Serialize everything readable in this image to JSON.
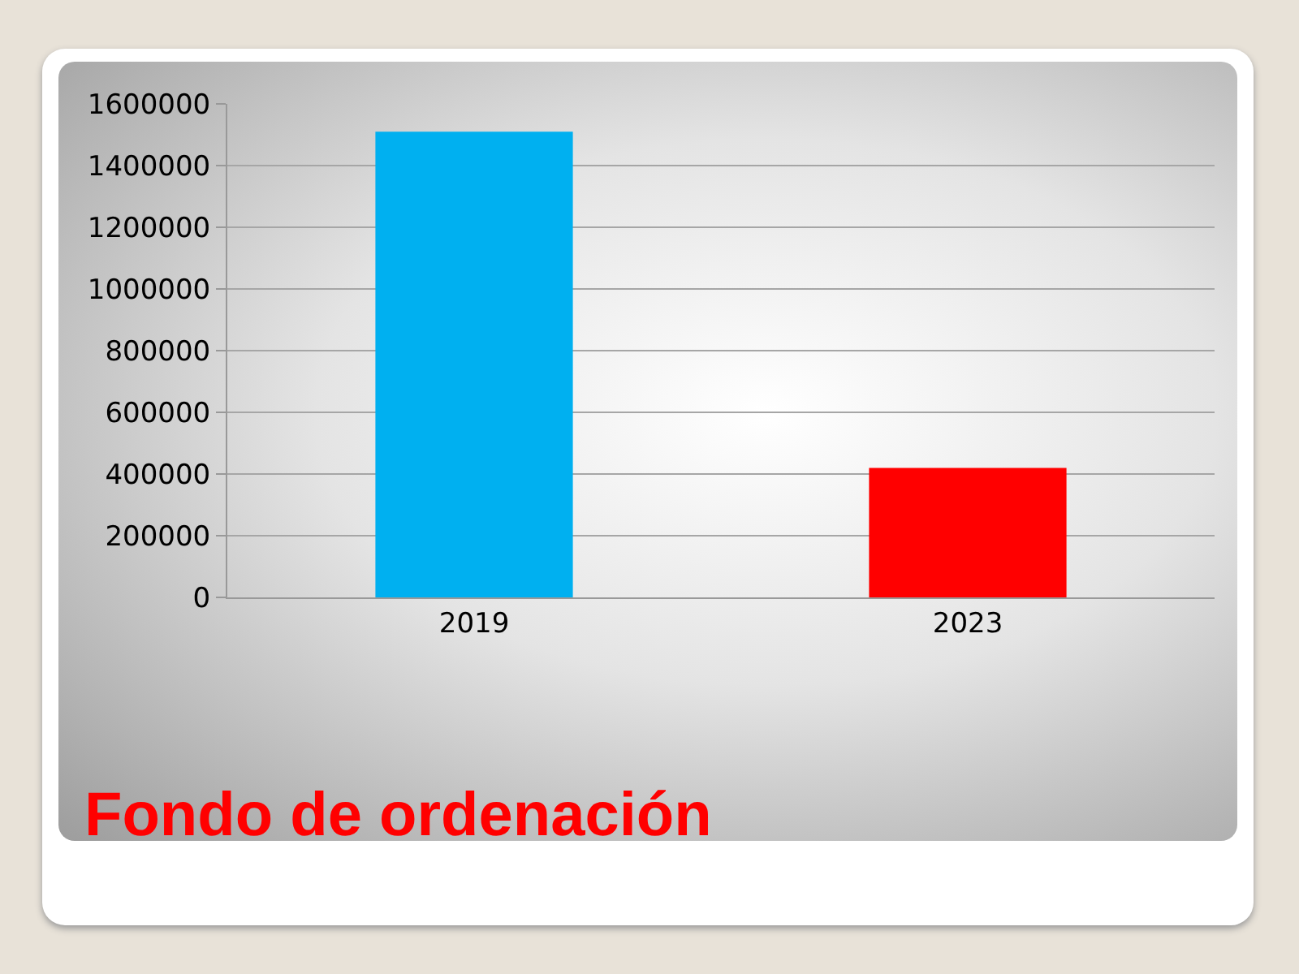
{
  "chart_data": {
    "type": "bar",
    "title": "Fondo de ordenación",
    "categories": [
      "2019",
      "2023"
    ],
    "values": [
      1510000,
      420000
    ],
    "colors": [
      "#00b0f0",
      "#ff0000"
    ],
    "ylim": [
      0,
      1600000
    ],
    "yticks": [
      0,
      200000,
      400000,
      600000,
      800000,
      1000000,
      1200000,
      1400000,
      1600000
    ],
    "grid": "y"
  }
}
